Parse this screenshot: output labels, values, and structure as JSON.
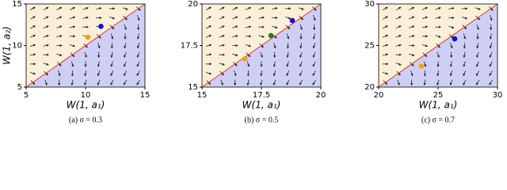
{
  "chart_data": [
    {
      "type": "quiver",
      "xlabel": "W(1, a₁)",
      "ylabel": "W(1, a₂)",
      "caption": "(a) σ = 0.3",
      "xlim": [
        5,
        15
      ],
      "ylim": [
        5,
        15
      ],
      "xticks": [
        5,
        10,
        15
      ],
      "yticks": [
        5,
        10,
        15
      ],
      "x": [
        10.2,
        11.3
      ],
      "values": [
        11.0,
        12.3
      ],
      "colors": [
        "#f0a020",
        "#1010d0"
      ]
    },
    {
      "type": "quiver",
      "xlabel": "W(1, a₁)",
      "caption": "(b) σ = 0.5",
      "xlim": [
        15,
        20
      ],
      "ylim": [
        15,
        20
      ],
      "xticks": [
        15,
        17.5,
        20
      ],
      "yticks": [
        15,
        17.5,
        20
      ],
      "x": [
        16.8,
        17.9,
        18.8
      ],
      "values": [
        16.7,
        18.1,
        19.0
      ],
      "colors": [
        "#f0a020",
        "#208020",
        "#1010d0"
      ]
    },
    {
      "type": "quiver",
      "xlabel": "W(1, a₁)",
      "caption": "(c) σ = 0.7",
      "xlim": [
        20,
        30
      ],
      "ylim": [
        20,
        30
      ],
      "xticks": [
        20,
        25,
        30
      ],
      "yticks": [
        20,
        25,
        30
      ],
      "x": [
        23.6,
        26.4
      ],
      "values": [
        22.5,
        25.8
      ],
      "colors": [
        "#f0a020",
        "#1010d0"
      ]
    }
  ]
}
